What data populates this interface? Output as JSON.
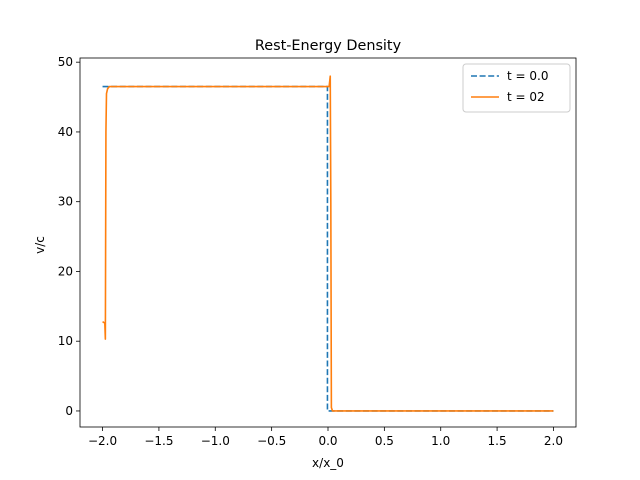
{
  "chart_data": {
    "type": "line",
    "title": "Rest-Energy Density",
    "xlabel": "x/x_0",
    "ylabel": "v/c",
    "xlim": [
      -2.2,
      2.2
    ],
    "ylim": [
      -2.3,
      50.6
    ],
    "x_ticks": [
      -2.0,
      -1.5,
      -1.0,
      -0.5,
      0.0,
      0.5,
      1.0,
      1.5,
      2.0
    ],
    "x_tick_labels": [
      "−2.0",
      "−1.5",
      "−1.0",
      "−0.5",
      "0.0",
      "0.5",
      "1.0",
      "1.5",
      "2.0"
    ],
    "y_ticks": [
      0,
      10,
      20,
      30,
      40,
      50
    ],
    "y_tick_labels": [
      "0",
      "10",
      "20",
      "30",
      "40",
      "50"
    ],
    "grid": false,
    "legend_position": "top-right",
    "series": [
      {
        "name": "t = 0.0",
        "color": "#1f77b4",
        "style": "dashed",
        "x": [
          -2.0,
          -0.005,
          -0.005,
          0.005,
          0.005,
          2.0
        ],
        "y": [
          46.5,
          46.5,
          0.0,
          0.0,
          0.0,
          0.0
        ]
      },
      {
        "name": "t = 02",
        "color": "#ff7f0e",
        "style": "solid",
        "x": [
          -2.0,
          -1.98,
          -1.975,
          -1.97,
          -1.965,
          -1.955,
          -1.94,
          -1.9,
          -1.5,
          -1.0,
          -0.5,
          0.0,
          0.01,
          0.02,
          0.025,
          0.03,
          0.04,
          0.1,
          0.5,
          1.0,
          1.5,
          2.0
        ],
        "y": [
          12.8,
          12.6,
          10.3,
          40.0,
          45.5,
          46.2,
          46.5,
          46.5,
          46.5,
          46.5,
          46.5,
          46.5,
          46.5,
          48.0,
          30.0,
          0.5,
          0.0,
          0.0,
          0.0,
          0.0,
          0.0,
          0.0
        ]
      }
    ]
  }
}
